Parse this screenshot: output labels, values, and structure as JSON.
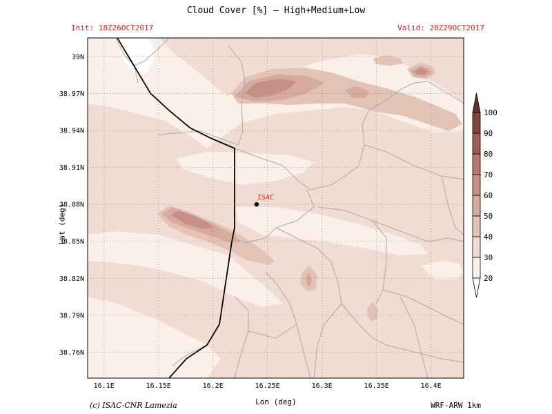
{
  "header": {
    "title": "Cloud  Cover [%] — High+Medium+Low",
    "init": "Init: 18Z26OCT2017",
    "valid": "Valid: 20Z29OCT2017"
  },
  "axes": {
    "xlabel": "Lon (deg)",
    "ylabel": "Lat (deg)",
    "x_ticks": [
      "16.1E",
      "16.15E",
      "16.2E",
      "16.25E",
      "16.3E",
      "16.35E",
      "16.4E"
    ],
    "y_ticks": [
      "39N",
      "38.97N",
      "38.94N",
      "38.91N",
      "38.88N",
      "38.85N",
      "38.82N",
      "38.79N",
      "38.76N"
    ],
    "lon_range": [
      16.085,
      16.43
    ],
    "lat_range": [
      38.739,
      39.015
    ]
  },
  "station": {
    "label": "ISAC",
    "lon": 16.24,
    "lat": 38.88
  },
  "colorbar": {
    "levels": [
      "20",
      "30",
      "40",
      "50",
      "60",
      "70",
      "80",
      "90",
      "100"
    ],
    "colors": [
      "#ffffff",
      "#fbf0e9",
      "#f0dcd3",
      "#e3c3b6",
      "#d6aa9d",
      "#c79087",
      "#b5786f",
      "#9c5e54",
      "#7e4539",
      "#633328"
    ]
  },
  "footer": {
    "credit": "(c) ISAC-CNR Lamezia",
    "model": "WRF-ARW 1km"
  }
}
